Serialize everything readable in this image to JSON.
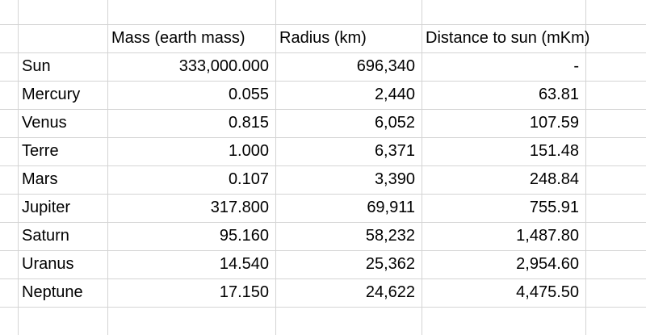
{
  "headers": [
    "Mass (earth mass)",
    "Radius (km)",
    "Distance to sun (mKm)"
  ],
  "rows": [
    {
      "name": "Sun",
      "mass": "333,000.000",
      "radius": "696,340",
      "distance": "-"
    },
    {
      "name": "Mercury",
      "mass": "0.055",
      "radius": "2,440",
      "distance": "63.81"
    },
    {
      "name": "Venus",
      "mass": "0.815",
      "radius": "6,052",
      "distance": "107.59"
    },
    {
      "name": "Terre",
      "mass": "1.000",
      "radius": "6,371",
      "distance": "151.48"
    },
    {
      "name": "Mars",
      "mass": "0.107",
      "radius": "3,390",
      "distance": "248.84"
    },
    {
      "name": "Jupiter",
      "mass": "317.800",
      "radius": "69,911",
      "distance": "755.91"
    },
    {
      "name": "Saturn",
      "mass": "95.160",
      "radius": "58,232",
      "distance": "1,487.80"
    },
    {
      "name": "Uranus",
      "mass": "14.540",
      "radius": "25,362",
      "distance": "2,954.60"
    },
    {
      "name": "Neptune",
      "mass": "17.150",
      "radius": "24,622",
      "distance": "4,475.50"
    }
  ]
}
